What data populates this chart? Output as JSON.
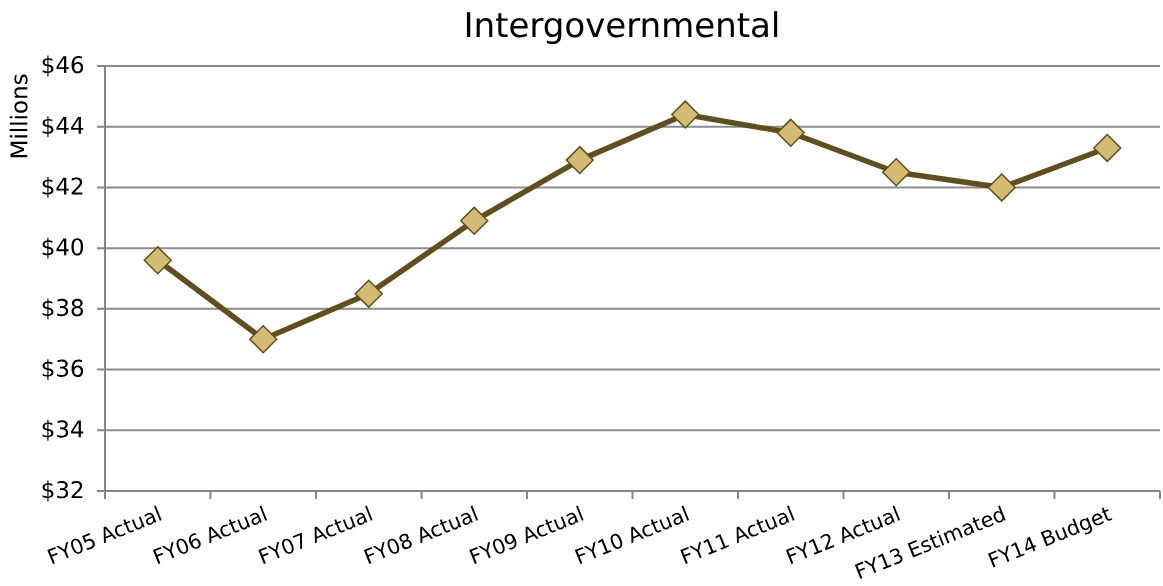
{
  "chart_data": {
    "type": "line",
    "title": "Intergovernmental",
    "ylabel": "Millions",
    "categories": [
      "FY05 Actual",
      "FY06 Actual",
      "FY07 Actual",
      "FY08 Actual",
      "FY09 Actual",
      "FY10 Actual",
      "FY11 Actual",
      "FY12 Actual",
      "FY13 Estimated",
      "FY14 Budget"
    ],
    "series": [
      {
        "color": "#5f4f1f",
        "colors": [
          "#d3bb73",
          "#d3bb73",
          "#d3bb73",
          "#d3bb73",
          "#d3bb73",
          "#d3bb73",
          "#d3bb73",
          "#d3bb73",
          "#d3bb73",
          "#d3bb73"
        ],
        "values": [
          39.6,
          37.0,
          38.5,
          40.9,
          42.9,
          44.4,
          43.8,
          42.5,
          42.0,
          43.3
        ]
      }
    ],
    "ylim": [
      32,
      46
    ],
    "yticks": [
      {
        "value": 32,
        "label": "$32"
      },
      {
        "value": 34,
        "label": "$34"
      },
      {
        "value": 36,
        "label": "$36"
      },
      {
        "value": 38,
        "label": "$38"
      },
      {
        "value": 40,
        "label": "$40"
      },
      {
        "value": 42,
        "label": "$42"
      },
      {
        "value": 44,
        "label": "$44"
      },
      {
        "value": 46,
        "label": "$46"
      }
    ],
    "grid": "y",
    "marker": "diamond",
    "line_style": "solid"
  }
}
